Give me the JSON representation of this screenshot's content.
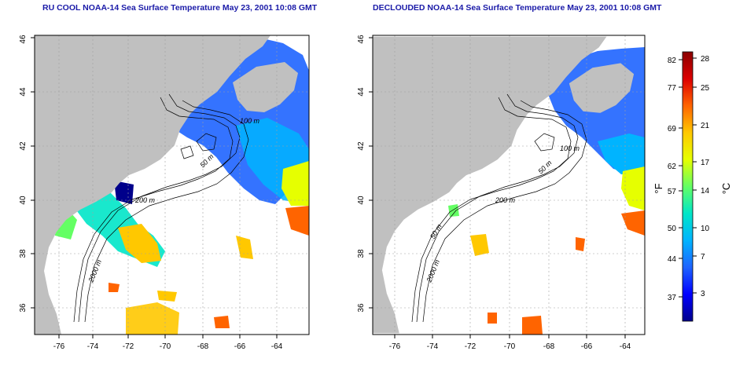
{
  "maps": [
    {
      "id": "left",
      "title": "RU COOL NOAA-14 Sea Surface Temperature May 23, 2001 10:08 GMT",
      "x_ticks": [
        "-76",
        "-74",
        "-72",
        "-70",
        "-68",
        "-66",
        "-64"
      ],
      "y_ticks": [
        "36",
        "38",
        "40",
        "42",
        "44",
        "46"
      ],
      "contour_labels": [
        "100 m",
        "50 m",
        "200 m",
        "2000 m"
      ]
    },
    {
      "id": "right",
      "title": "DECLOUDED NOAA-14 Sea Surface Temperature May 23, 2001 10:08 GMT",
      "x_ticks": [
        "-76",
        "-74",
        "-72",
        "-70",
        "-68",
        "-66",
        "-64"
      ],
      "y_ticks": [
        "36",
        "38",
        "40",
        "42",
        "44",
        "46"
      ],
      "contour_labels": [
        "100 m",
        "50 m",
        "200 m",
        "50 m",
        "2000 m"
      ]
    }
  ],
  "colorbar": {
    "fahrenheit_label": "°F",
    "celsius_label": "°C",
    "fahrenheit_ticks": [
      "82",
      "77",
      "69",
      "62",
      "57",
      "50",
      "44",
      "37"
    ],
    "celsius_ticks": [
      "28",
      "25",
      "21",
      "17",
      "14",
      "10",
      "7",
      "3"
    ]
  },
  "colors": {
    "land": "#c0c0c0",
    "ocean": "#ffffff",
    "title": "#1a1aa8",
    "colormap": [
      "#00008b",
      "#0000ff",
      "#1e64ff",
      "#00b4ff",
      "#00e6c8",
      "#64ff64",
      "#e6ff00",
      "#ffc800",
      "#ff6400",
      "#dc0000",
      "#8b0000"
    ]
  }
}
